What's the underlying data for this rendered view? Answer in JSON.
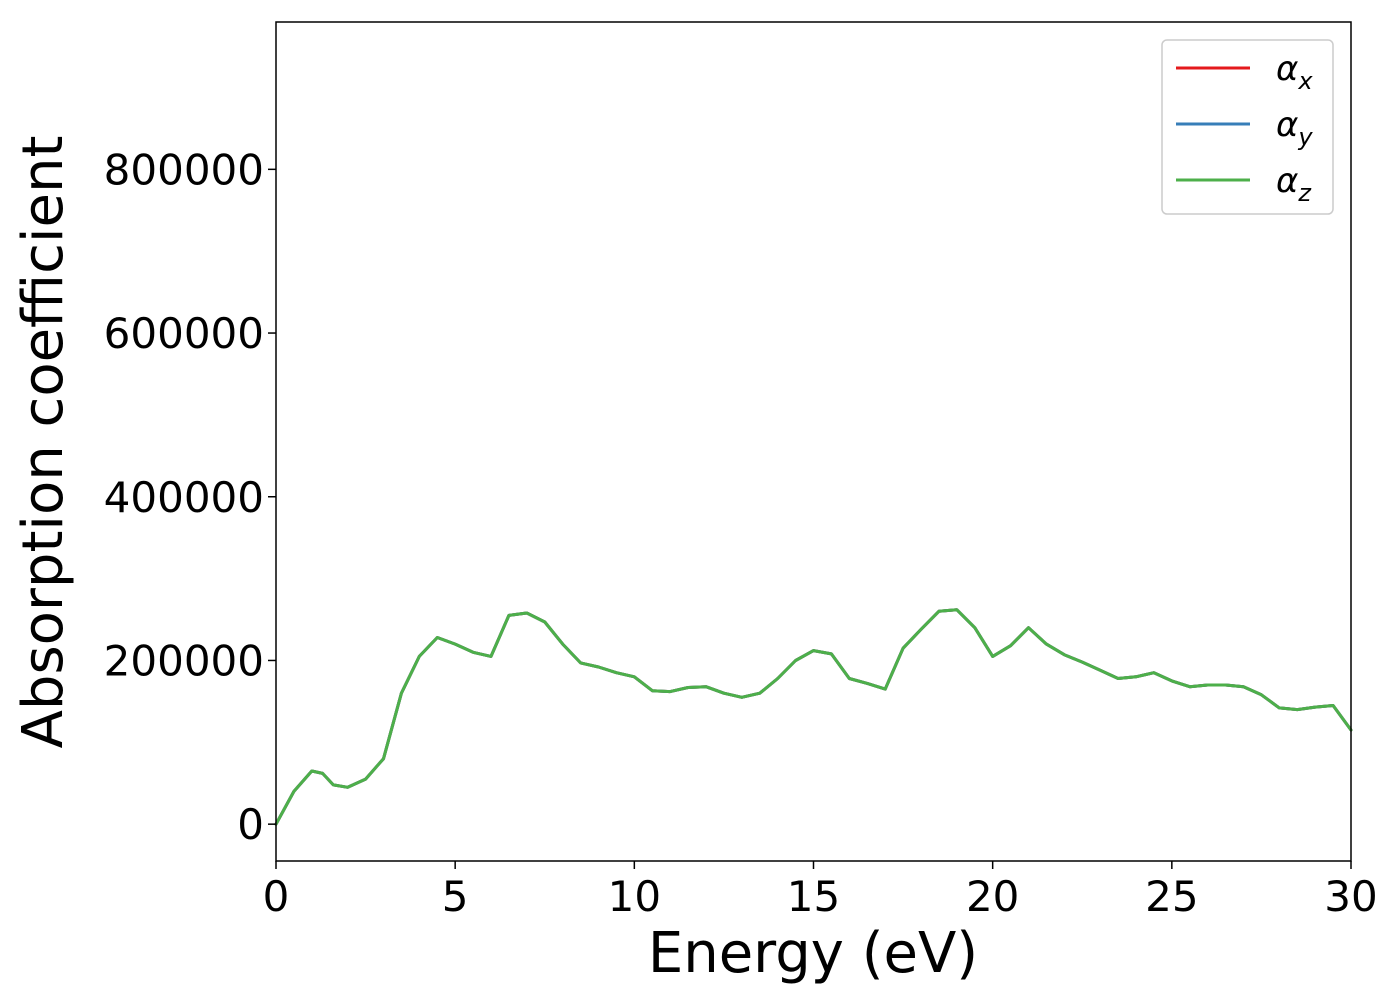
{
  "chart_data": {
    "type": "line",
    "title": "",
    "xlabel": "Energy (eV)",
    "ylabel": "Absorption coefficient",
    "xlim": [
      0,
      30
    ],
    "ylim": [
      -45000,
      980000
    ],
    "xticks": [
      0,
      5,
      10,
      15,
      20,
      25,
      30
    ],
    "yticks": [
      0,
      200000,
      400000,
      600000,
      800000
    ],
    "grid": false,
    "legend_position": "top-right",
    "x": [
      0,
      0.5,
      1.0,
      1.3,
      1.6,
      2.0,
      2.5,
      3.0,
      3.5,
      4.0,
      4.5,
      5.0,
      5.5,
      6.0,
      6.5,
      7.0,
      7.5,
      8.0,
      8.5,
      9.0,
      9.5,
      10.0,
      10.5,
      11.0,
      11.5,
      12.0,
      12.5,
      13.0,
      13.5,
      14.0,
      14.5,
      15.0,
      15.5,
      16.0,
      16.5,
      17.0,
      17.5,
      18.0,
      18.5,
      19.0,
      19.5,
      20.0,
      20.5,
      21.0,
      21.5,
      22.0,
      22.5,
      23.0,
      23.5,
      24.0,
      24.5,
      25.0,
      25.5,
      26.0,
      26.5,
      27.0,
      27.5,
      28.0,
      28.5,
      29.0,
      29.5,
      30.0
    ],
    "series": [
      {
        "name": "αx",
        "color": "#e41a1c",
        "values": [
          0,
          40000,
          65000,
          62000,
          48000,
          45000,
          55000,
          80000,
          160000,
          205000,
          228000,
          220000,
          210000,
          205000,
          255000,
          258000,
          247000,
          220000,
          197000,
          192000,
          185000,
          180000,
          163000,
          162000,
          167000,
          168000,
          160000,
          155000,
          160000,
          178000,
          200000,
          212000,
          208000,
          178000,
          172000,
          165000,
          215000,
          238000,
          260000,
          262000,
          240000,
          205000,
          218000,
          240000,
          220000,
          207000,
          198000,
          188000,
          178000,
          180000,
          185000,
          175000,
          168000,
          170000,
          170000,
          168000,
          158000,
          142000,
          140000,
          143000,
          145000,
          115000
        ]
      },
      {
        "name": "αy",
        "color": "#377eb8",
        "values": [
          0,
          40000,
          65000,
          62000,
          48000,
          45000,
          55000,
          80000,
          160000,
          205000,
          228000,
          220000,
          210000,
          205000,
          255000,
          258000,
          247000,
          220000,
          197000,
          192000,
          185000,
          180000,
          163000,
          162000,
          167000,
          168000,
          160000,
          155000,
          160000,
          178000,
          200000,
          212000,
          208000,
          178000,
          172000,
          165000,
          215000,
          238000,
          260000,
          262000,
          240000,
          205000,
          218000,
          240000,
          220000,
          207000,
          198000,
          188000,
          178000,
          180000,
          185000,
          175000,
          168000,
          170000,
          170000,
          168000,
          158000,
          142000,
          140000,
          143000,
          145000,
          115000
        ]
      },
      {
        "name": "αz",
        "color": "#4daf4a",
        "values": [
          0,
          40000,
          65000,
          62000,
          48000,
          45000,
          55000,
          80000,
          160000,
          205000,
          228000,
          220000,
          210000,
          205000,
          255000,
          258000,
          247000,
          220000,
          197000,
          192000,
          185000,
          180000,
          163000,
          162000,
          167000,
          168000,
          160000,
          155000,
          160000,
          178000,
          200000,
          212000,
          208000,
          178000,
          172000,
          165000,
          215000,
          238000,
          260000,
          262000,
          240000,
          205000,
          218000,
          240000,
          220000,
          207000,
          198000,
          188000,
          178000,
          180000,
          185000,
          175000,
          168000,
          170000,
          170000,
          168000,
          158000,
          142000,
          140000,
          143000,
          145000,
          115000
        ]
      }
    ],
    "legend": [
      {
        "symbol": "α",
        "sub": "x",
        "color": "#e41a1c"
      },
      {
        "symbol": "α",
        "sub": "y",
        "color": "#377eb8"
      },
      {
        "symbol": "α",
        "sub": "z",
        "color": "#4daf4a"
      }
    ]
  }
}
